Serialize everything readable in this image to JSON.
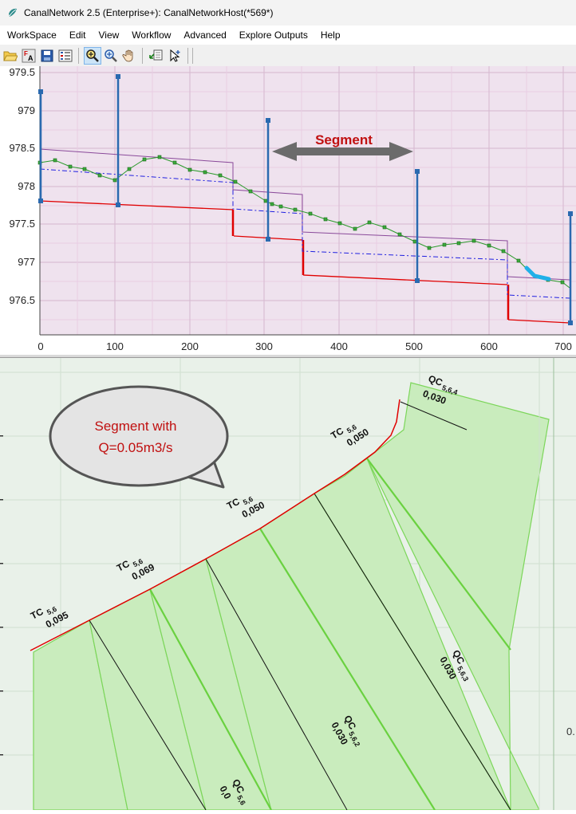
{
  "window": {
    "title": "CanalNetwork 2.5  (Enterprise+): CanalNetworkHost(*569*)"
  },
  "menu": [
    "WorkSpace",
    "Edit",
    "View",
    "Workflow",
    "Advanced",
    "Explore Outputs",
    "Help"
  ],
  "toolbar": {
    "icons": [
      "open-folder-icon",
      "font-icon",
      "save-icon",
      "properties-icon",
      "zoom-window-icon",
      "zoom-icon",
      "pan-hand-icon",
      "import-icon",
      "select-arrow-icon"
    ]
  },
  "profile": {
    "y_ticks": [
      "979.5",
      "979",
      "978.5",
      "978",
      "977.5",
      "977",
      "976.5"
    ],
    "x_ticks": [
      "0",
      "100",
      "200",
      "300",
      "400",
      "500",
      "600",
      "700"
    ],
    "segment_label": "Segment"
  },
  "plan": {
    "callout": {
      "line1": "Segment with",
      "line2": "Q=0.05m3/s"
    },
    "tc_labels": [
      {
        "name": "TC",
        "sub": "5,6",
        "value": "0,095"
      },
      {
        "name": "TC",
        "sub": "5,6",
        "value": "0,069"
      },
      {
        "name": "TC",
        "sub": "5,6",
        "value": "0,050"
      },
      {
        "name": "TC",
        "sub": "5,6",
        "value": "0,050"
      }
    ],
    "qc_labels": [
      {
        "name": "QC",
        "sub": "5,6,4",
        "value": "0,030"
      },
      {
        "name": "QC",
        "sub": "5,6,3",
        "value": "0,030"
      },
      {
        "name": "QC",
        "sub": "5,6,2",
        "value": "0,030"
      },
      {
        "name": "QC",
        "sub": "5,6",
        "value": "0,0"
      }
    ],
    "edge_label": "0."
  }
}
